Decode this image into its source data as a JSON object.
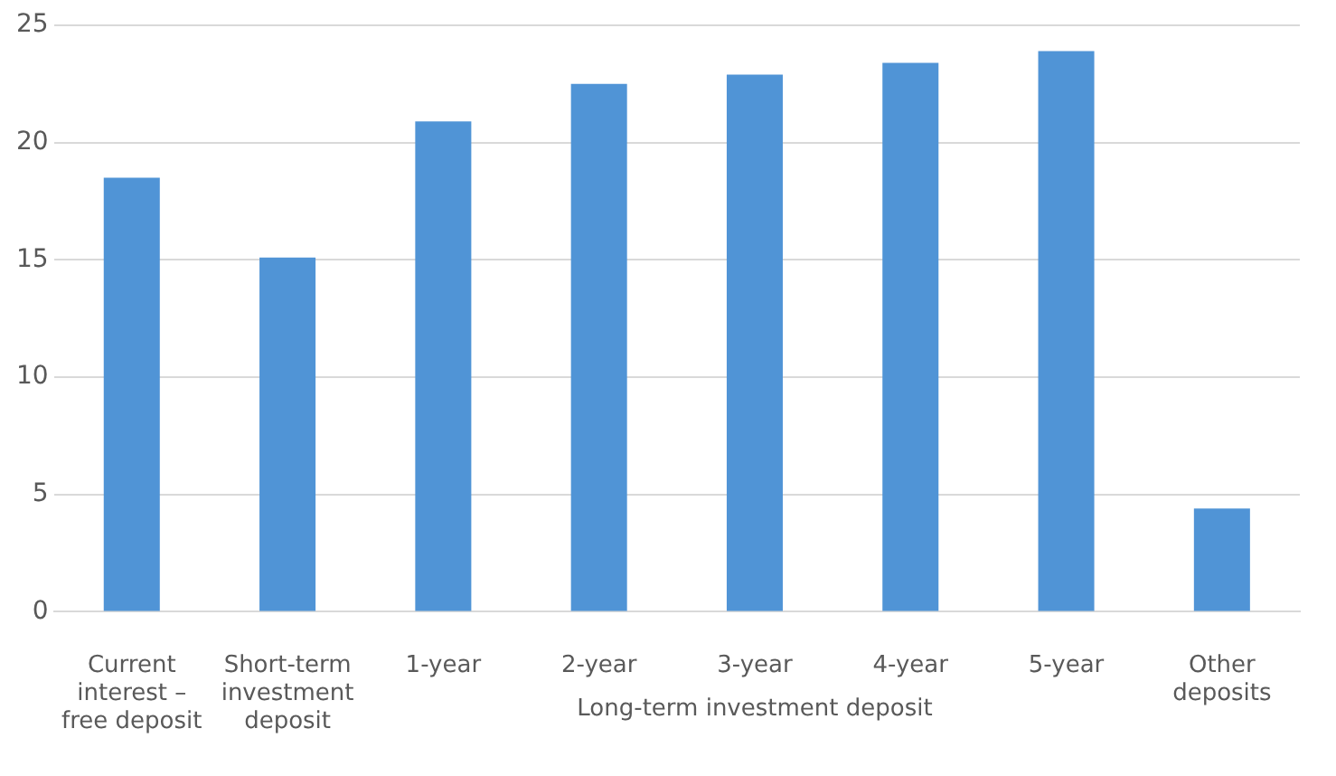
{
  "chart_data": {
    "type": "bar",
    "categories": [
      "Current interest – free deposit",
      "Short-term investment deposit",
      "1-year",
      "2-year",
      "3-year",
      "4-year",
      "5-year",
      "Other deposits"
    ],
    "values": [
      18.5,
      15.1,
      20.9,
      22.5,
      22.9,
      23.4,
      23.9,
      4.4
    ],
    "color": "#5094d6",
    "ylim": [
      0,
      25
    ],
    "yticks": [
      0,
      5,
      10,
      15,
      20,
      25
    ],
    "grid": "y",
    "annotations": [
      "Long-term investment deposit"
    ]
  }
}
